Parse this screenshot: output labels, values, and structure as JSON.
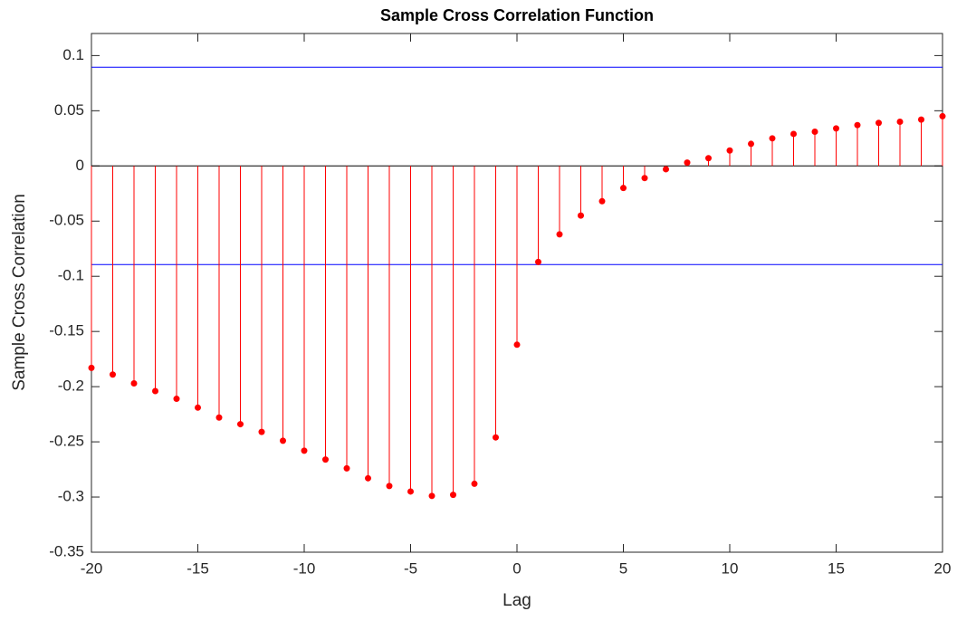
{
  "chart_data": {
    "type": "stem",
    "title": "Sample Cross Correlation Function",
    "x_label": "Lag",
    "y_label": "Sample Cross Correlation",
    "x": [
      -20,
      -19,
      -18,
      -17,
      -16,
      -15,
      -14,
      -13,
      -12,
      -11,
      -10,
      -9,
      -8,
      -7,
      -6,
      -5,
      -4,
      -3,
      -2,
      -1,
      0,
      1,
      2,
      3,
      4,
      5,
      6,
      7,
      8,
      9,
      10,
      11,
      12,
      13,
      14,
      15,
      16,
      17,
      18,
      19,
      20
    ],
    "values": [
      -0.183,
      -0.189,
      -0.197,
      -0.204,
      -0.211,
      -0.219,
      -0.228,
      -0.234,
      -0.241,
      -0.249,
      -0.258,
      -0.266,
      -0.274,
      -0.283,
      -0.29,
      -0.295,
      -0.299,
      -0.298,
      -0.288,
      -0.246,
      -0.162,
      -0.087,
      -0.062,
      -0.045,
      -0.032,
      -0.02,
      -0.011,
      -0.003,
      0.003,
      0.007,
      0.014,
      0.02,
      0.025,
      0.029,
      0.031,
      0.034,
      0.037,
      0.039,
      0.04,
      0.042,
      0.045
    ],
    "color": "#ff0000",
    "bounds": [
      0.0894,
      -0.0894
    ],
    "bounds_color": "#0000ff",
    "xlim": [
      -20,
      20
    ],
    "xticks": [
      -20,
      -15,
      -10,
      -5,
      0,
      5,
      10,
      15,
      20
    ],
    "ylim": [
      -0.35,
      0.12
    ],
    "yticks": [
      -0.35,
      -0.3,
      -0.25,
      -0.2,
      -0.15,
      -0.1,
      -0.05,
      0,
      0.05,
      0.1
    ],
    "grid": false
  }
}
